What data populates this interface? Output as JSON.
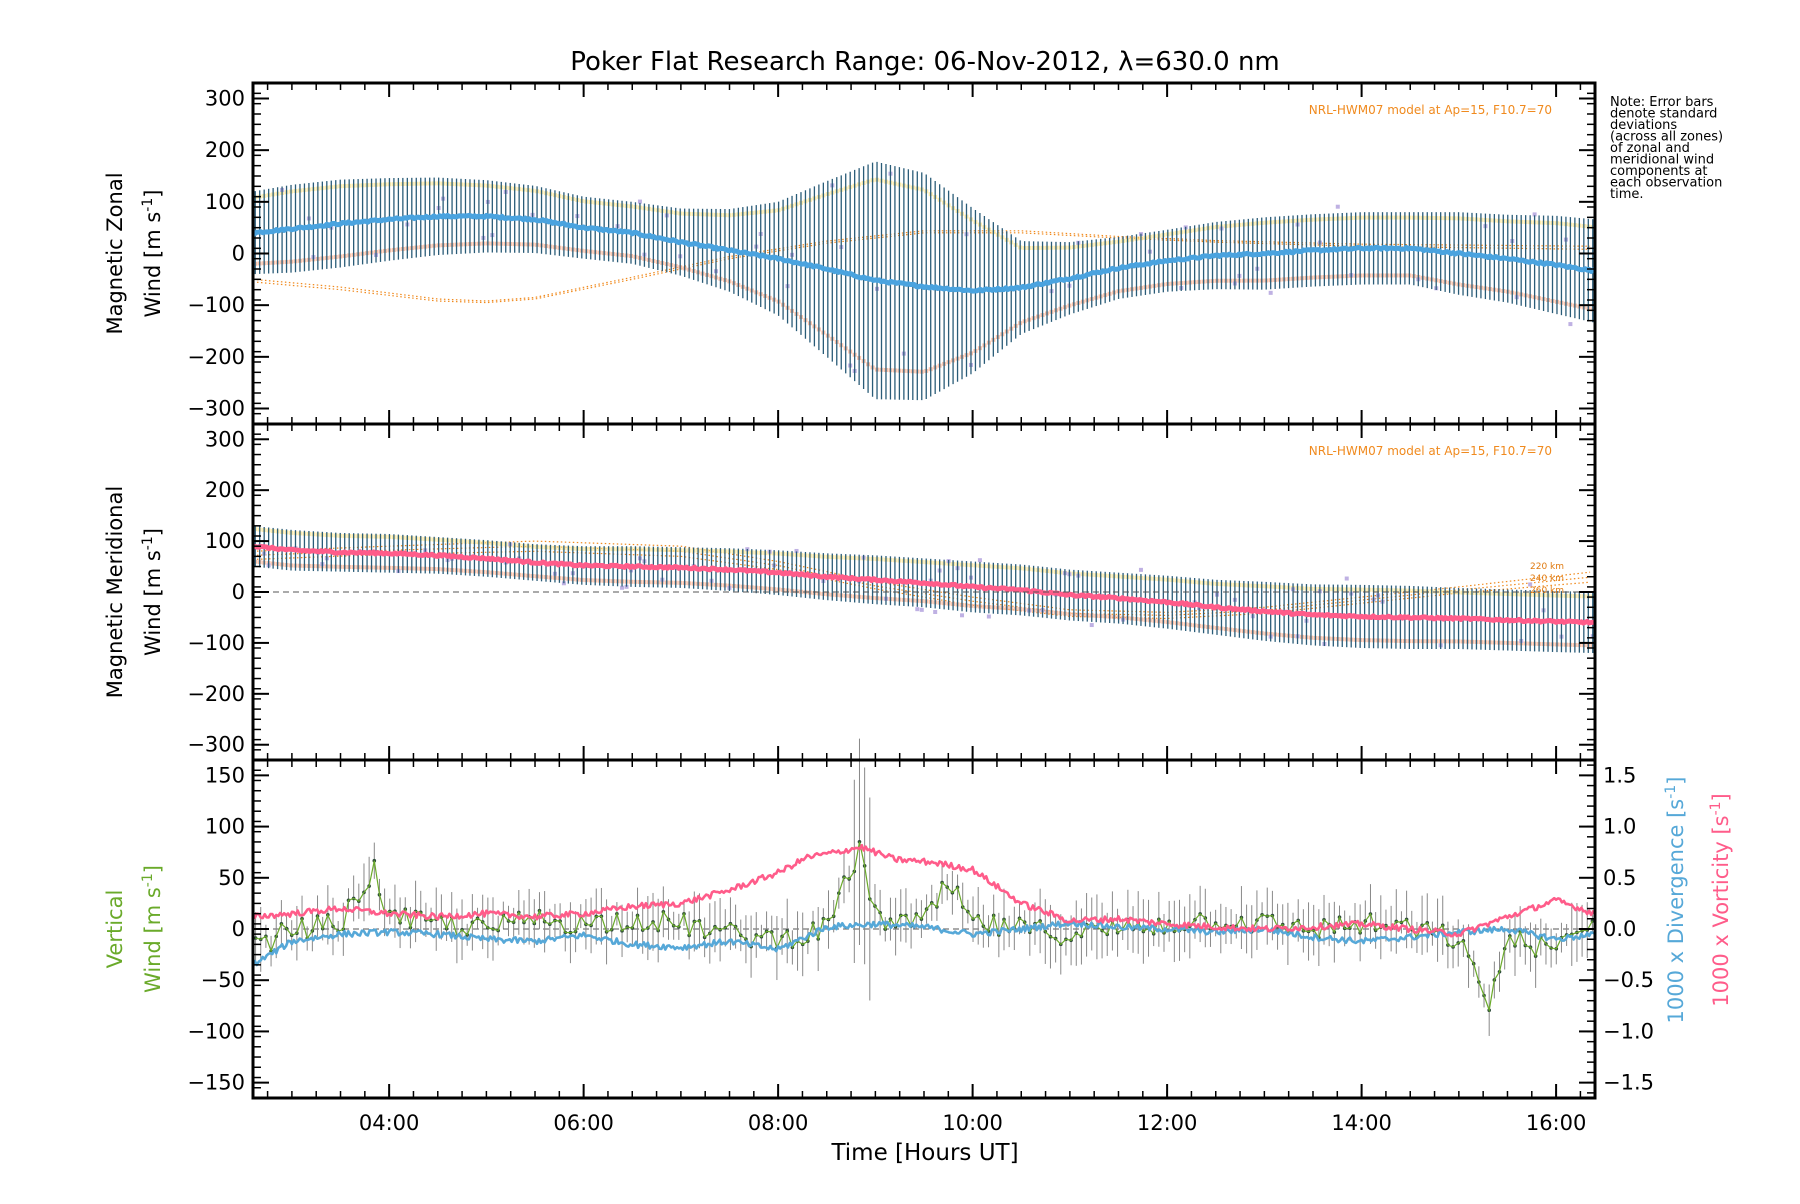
{
  "chart_data": {
    "title": "Poker Flat Research Range: 06-Nov-2012, λ=630.0 nm",
    "note_lines": [
      "Note: Error bars",
      "denote standard",
      "deviations",
      "(across all zones)",
      "of zonal and",
      "meridional wind",
      "components at",
      "each observation",
      "time."
    ],
    "xlabel": "Time [Hours UT]",
    "x_ticks": [
      "04:00",
      "06:00",
      "08:00",
      "10:00",
      "12:00",
      "14:00",
      "16:00"
    ],
    "x_tick_hours": [
      4,
      6,
      8,
      10,
      12,
      14,
      16
    ],
    "xlim_hours": [
      2.6,
      16.4
    ],
    "colors": {
      "zonal_mean": "#4aa3df",
      "meridional_mean": "#ff5c8a",
      "vertical": "#6aaa2a",
      "divergence": "#56a8d8",
      "vorticity": "#ff5c8a",
      "errbar": "#2a5c78",
      "model": "#f08a1e",
      "pos_spread": "#fde9a0",
      "neg_spread": "#f9b89c",
      "zone_pts": "#b8a8e0"
    },
    "panels": [
      {
        "type": "line",
        "ylabel_lines": [
          "Magnetic Zonal",
          "Wind [m s",
          "-1",
          "]"
        ],
        "ylim": [
          -330,
          330
        ],
        "y_ticks": [
          -300,
          -200,
          -100,
          0,
          100,
          200,
          300
        ],
        "y_tick_labels": [
          "−300",
          "−200",
          "−100",
          "0",
          "100",
          "200",
          "300"
        ],
        "model_label": "NRL-HWM07 model at Ap=15, F10.7=70",
        "mean_series": {
          "x": [
            2.6,
            3.0,
            3.5,
            4.0,
            4.5,
            5.0,
            5.5,
            6.0,
            6.5,
            7.0,
            7.5,
            8.0,
            8.5,
            9.0,
            9.5,
            10.0,
            10.5,
            11.0,
            11.5,
            12.0,
            12.5,
            13.0,
            13.5,
            14.0,
            14.5,
            15.0,
            15.5,
            16.0,
            16.4
          ],
          "y": [
            40,
            48,
            58,
            66,
            72,
            72,
            66,
            50,
            40,
            22,
            6,
            -10,
            -30,
            -52,
            -64,
            -72,
            -66,
            -48,
            -28,
            -14,
            -4,
            0,
            6,
            10,
            10,
            0,
            -10,
            -22,
            -34
          ]
        },
        "error_halfwidth": [
          80,
          85,
          85,
          80,
          75,
          70,
          65,
          60,
          60,
          65,
          80,
          110,
          170,
          230,
          220,
          160,
          90,
          70,
          60,
          60,
          65,
          70,
          70,
          70,
          70,
          80,
          85,
          95,
          100
        ],
        "model_curves": [
          {
            "x": [
              2.6,
              3.5,
              4.5,
              5.0,
              5.5,
              6.5,
              7.5,
              8.5,
              9.5,
              10.5,
              11.5,
              12.5,
              14.0,
              16.4
            ],
            "y": [
              -55,
              -70,
              -92,
              -95,
              -88,
              -50,
              -10,
              20,
              40,
              40,
              30,
              22,
              14,
              8
            ]
          },
          {
            "x": [
              2.6,
              3.5,
              4.5,
              5.0,
              5.5,
              6.5,
              7.5,
              8.5,
              9.5,
              10.5,
              11.5,
              12.5,
              14.0,
              16.4
            ],
            "y": [
              -50,
              -65,
              -88,
              -92,
              -85,
              -46,
              -6,
              24,
              44,
              44,
              33,
              25,
              18,
              14
            ]
          }
        ]
      },
      {
        "type": "line",
        "ylabel_lines": [
          "Magnetic Meridional",
          "Wind [m s",
          "-1",
          "]"
        ],
        "ylim": [
          -330,
          330
        ],
        "y_ticks": [
          -300,
          -200,
          -100,
          0,
          100,
          200,
          300
        ],
        "y_tick_labels": [
          "−300",
          "−200",
          "−100",
          "0",
          "100",
          "200",
          "300"
        ],
        "model_label": "NRL-HWM07 model at Ap=15, F10.7=70",
        "altitude_labels": [
          "220 km",
          "240 km",
          "260 km"
        ],
        "mean_series": {
          "x": [
            2.6,
            3.0,
            3.5,
            4.0,
            4.5,
            5.0,
            5.5,
            6.0,
            6.5,
            7.0,
            7.5,
            8.0,
            8.5,
            9.0,
            9.5,
            10.0,
            10.5,
            11.0,
            11.5,
            12.0,
            12.5,
            13.0,
            13.5,
            14.0,
            14.5,
            15.0,
            15.5,
            16.0,
            16.4
          ],
          "y": [
            90,
            82,
            78,
            76,
            72,
            66,
            58,
            52,
            50,
            48,
            44,
            38,
            30,
            24,
            18,
            10,
            4,
            -6,
            -12,
            -20,
            -30,
            -38,
            -45,
            -48,
            -50,
            -52,
            -55,
            -58,
            -60
          ]
        },
        "error_halfwidth": [
          40,
          40,
          38,
          38,
          36,
          36,
          36,
          38,
          40,
          40,
          42,
          44,
          46,
          48,
          48,
          50,
          50,
          50,
          50,
          52,
          54,
          58,
          60,
          62,
          62,
          60,
          60,
          60,
          60
        ],
        "model_curves": [
          {
            "x": [
              2.6,
              4.0,
              5.5,
              7.0,
              8.0,
              9.0,
              10.0,
              11.0,
              12.0,
              13.0,
              14.0,
              15.0,
              16.4
            ],
            "y": [
              80,
              90,
              100,
              90,
              60,
              20,
              -10,
              -35,
              -40,
              -30,
              -10,
              10,
              40
            ]
          },
          {
            "x": [
              2.6,
              4.0,
              5.5,
              7.0,
              8.0,
              9.0,
              10.0,
              11.0,
              12.0,
              13.0,
              14.0,
              15.0,
              16.4
            ],
            "y": [
              72,
              82,
              90,
              80,
              52,
              12,
              -18,
              -42,
              -46,
              -36,
              -16,
              4,
              30
            ]
          },
          {
            "x": [
              2.6,
              4.0,
              5.5,
              7.0,
              8.0,
              9.0,
              10.0,
              11.0,
              12.0,
              13.0,
              14.0,
              15.0,
              16.4
            ],
            "y": [
              64,
              74,
              80,
              70,
              44,
              6,
              -26,
              -48,
              -52,
              -42,
              -22,
              -2,
              20
            ]
          }
        ]
      },
      {
        "type": "line",
        "ylabel_left_lines": [
          "Vertical",
          "Wind [m s",
          "-1",
          "]"
        ],
        "ylim": [
          -165,
          165
        ],
        "y_ticks": [
          -150,
          -100,
          -50,
          0,
          50,
          100,
          150
        ],
        "y_tick_labels": [
          "−150",
          "−100",
          "−50",
          "0",
          "50",
          "100",
          "150"
        ],
        "ylabel_right1": [
          "1000 x Divergence [s",
          "-1",
          "]"
        ],
        "ylabel_right2": [
          "1000 x Vorticity [s",
          "-1",
          "]"
        ],
        "ylim_right": [
          -1.65,
          1.65
        ],
        "y_ticks_right": [
          -1.5,
          -1.0,
          -0.5,
          0.0,
          0.5,
          1.0,
          1.5
        ],
        "y_tick_labels_right": [
          "−1.5",
          "−1.0",
          "−0.5",
          "0.0",
          "0.5",
          "1.0",
          "1.5"
        ],
        "vertical_wind": {
          "x": [
            2.6,
            3.0,
            3.5,
            3.85,
            4.0,
            4.5,
            5.0,
            5.5,
            6.0,
            6.5,
            7.0,
            7.5,
            8.0,
            8.5,
            8.85,
            9.0,
            9.5,
            9.75,
            10.0,
            10.5,
            11.0,
            11.5,
            12.0,
            12.5,
            13.0,
            13.5,
            14.0,
            14.5,
            15.0,
            15.3,
            15.5,
            16.0,
            16.4
          ],
          "y": [
            -20,
            0,
            5,
            58,
            10,
            5,
            0,
            10,
            5,
            10,
            5,
            -5,
            -10,
            0,
            80,
            10,
            5,
            45,
            5,
            0,
            -5,
            0,
            5,
            10,
            5,
            0,
            5,
            0,
            -10,
            -75,
            -10,
            -20,
            5
          ]
        },
        "divergence": {
          "x": [
            2.6,
            3.0,
            3.5,
            4.0,
            4.5,
            5.0,
            5.5,
            6.0,
            6.5,
            7.0,
            7.5,
            8.0,
            8.5,
            9.0,
            9.5,
            10.0,
            10.5,
            11.0,
            11.5,
            12.0,
            12.5,
            13.0,
            13.5,
            14.0,
            14.5,
            15.0,
            15.5,
            16.0,
            16.4
          ],
          "y": [
            -0.35,
            -0.12,
            -0.05,
            -0.03,
            -0.05,
            -0.1,
            -0.12,
            -0.06,
            -0.15,
            -0.18,
            -0.12,
            -0.2,
            0.02,
            0.05,
            0.02,
            -0.05,
            0.0,
            0.06,
            0.02,
            0.0,
            -0.03,
            0.0,
            -0.08,
            -0.12,
            -0.08,
            -0.03,
            0.0,
            -0.1,
            -0.05
          ]
        },
        "vorticity": {
          "x": [
            2.6,
            3.0,
            3.5,
            4.0,
            4.5,
            5.0,
            5.5,
            6.0,
            6.5,
            7.0,
            7.5,
            8.0,
            8.3,
            8.6,
            8.85,
            9.2,
            9.6,
            10.0,
            10.5,
            11.0,
            11.5,
            12.0,
            12.5,
            13.0,
            13.5,
            14.0,
            14.5,
            15.0,
            15.5,
            16.0,
            16.4
          ],
          "y": [
            0.12,
            0.15,
            0.2,
            0.15,
            0.12,
            0.15,
            0.12,
            0.15,
            0.22,
            0.25,
            0.38,
            0.55,
            0.7,
            0.75,
            0.8,
            0.68,
            0.65,
            0.58,
            0.25,
            0.08,
            0.1,
            0.05,
            0.02,
            0.0,
            0.02,
            0.05,
            0.0,
            -0.05,
            0.12,
            0.28,
            0.15
          ]
        }
      }
    ]
  }
}
